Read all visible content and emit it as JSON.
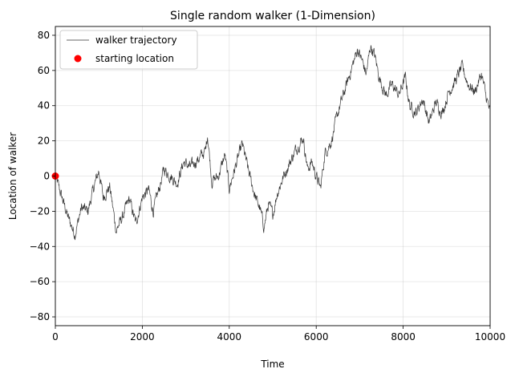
{
  "chart_data": {
    "type": "line",
    "title": "Single random walker (1-Dimension)",
    "xlabel": "Time",
    "ylabel": "Location of walker",
    "xlim": [
      0,
      10000
    ],
    "ylim": [
      -85,
      85
    ],
    "xticks": [
      0,
      2000,
      4000,
      6000,
      8000,
      10000
    ],
    "yticks": [
      -80,
      -60,
      -40,
      -20,
      0,
      20,
      40,
      60,
      80
    ],
    "grid": true,
    "legend_position": "top-left",
    "series": [
      {
        "name": "walker trajectory",
        "color": "#333333",
        "anchors": [
          [
            0,
            0
          ],
          [
            150,
            -12
          ],
          [
            300,
            -24
          ],
          [
            450,
            -33
          ],
          [
            600,
            -18
          ],
          [
            750,
            -20
          ],
          [
            900,
            -5
          ],
          [
            1000,
            3
          ],
          [
            1100,
            -12
          ],
          [
            1250,
            -6
          ],
          [
            1400,
            -31
          ],
          [
            1550,
            -23
          ],
          [
            1700,
            -13
          ],
          [
            1850,
            -27
          ],
          [
            2000,
            -12
          ],
          [
            2150,
            -8
          ],
          [
            2250,
            -20
          ],
          [
            2400,
            -6
          ],
          [
            2500,
            4
          ],
          [
            2650,
            0
          ],
          [
            2800,
            -4
          ],
          [
            2950,
            8
          ],
          [
            3100,
            5
          ],
          [
            3300,
            10
          ],
          [
            3450,
            14
          ],
          [
            3500,
            24
          ],
          [
            3600,
            -3
          ],
          [
            3750,
            0
          ],
          [
            3900,
            12
          ],
          [
            4000,
            -7
          ],
          [
            4150,
            6
          ],
          [
            4300,
            18
          ],
          [
            4450,
            2
          ],
          [
            4600,
            -12
          ],
          [
            4700,
            -18
          ],
          [
            4800,
            -29
          ],
          [
            4900,
            -16
          ],
          [
            5000,
            -22
          ],
          [
            5100,
            -10
          ],
          [
            5250,
            0
          ],
          [
            5400,
            8
          ],
          [
            5550,
            16
          ],
          [
            5700,
            22
          ],
          [
            5800,
            4
          ],
          [
            5900,
            8
          ],
          [
            6000,
            0
          ],
          [
            6100,
            -7
          ],
          [
            6200,
            13
          ],
          [
            6350,
            20
          ],
          [
            6500,
            36
          ],
          [
            6650,
            48
          ],
          [
            6800,
            60
          ],
          [
            6950,
            72
          ],
          [
            7050,
            66
          ],
          [
            7150,
            58
          ],
          [
            7250,
            74
          ],
          [
            7350,
            68
          ],
          [
            7450,
            56
          ],
          [
            7600,
            46
          ],
          [
            7750,
            52
          ],
          [
            7900,
            46
          ],
          [
            8050,
            56
          ],
          [
            8150,
            40
          ],
          [
            8300,
            36
          ],
          [
            8450,
            44
          ],
          [
            8600,
            30
          ],
          [
            8750,
            42
          ],
          [
            8900,
            36
          ],
          [
            9050,
            48
          ],
          [
            9200,
            54
          ],
          [
            9350,
            62
          ],
          [
            9500,
            52
          ],
          [
            9650,
            48
          ],
          [
            9800,
            58
          ],
          [
            9900,
            46
          ],
          [
            10000,
            36
          ]
        ],
        "noise_amplitude": 2.6
      }
    ],
    "scatter": [
      {
        "name": "starting location",
        "color": "#ff0000",
        "x": 0,
        "y": 0
      }
    ]
  }
}
